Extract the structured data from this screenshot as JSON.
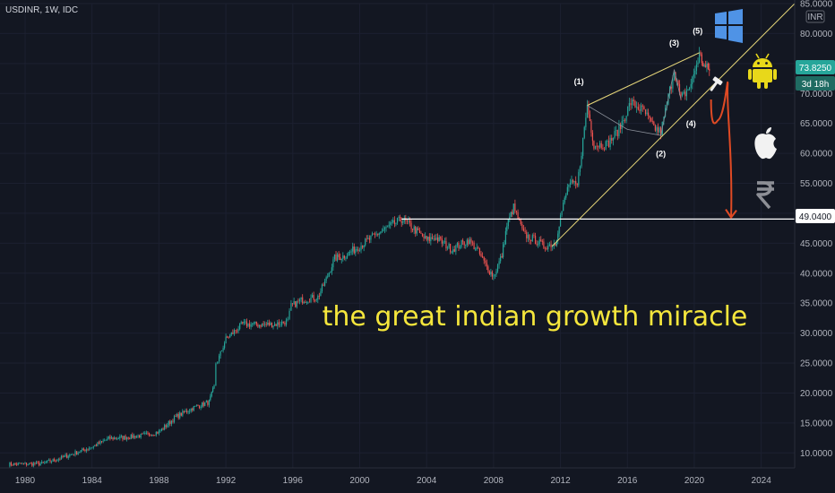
{
  "header": {
    "ticker": "USDINR, 1W, IDC"
  },
  "headline": "the great indian growth miracle",
  "currency_unit": "INR",
  "price_tag": "73.8250",
  "timer_tag": "3d 18h",
  "level_tag": "49.0400",
  "colors": {
    "background": "#131722",
    "up": "#26a69a",
    "down": "#ef5350",
    "trendline": "#e8d87a",
    "wave_line": "#8a8f99",
    "projection": "#e04a24",
    "support_line": "#ffffff",
    "headline": "#f5e63c"
  },
  "icons": [
    "windows-logo-icon",
    "android-logo-icon",
    "apple-logo-icon",
    "rupee-symbol-icon",
    "hammer-icon"
  ],
  "chart_data": {
    "type": "candlestick",
    "title": "USDINR, 1W, IDC",
    "xlim": [
      1978.5,
      2026
    ],
    "ylim": [
      7.5,
      85
    ],
    "x_ticks": [
      {
        "label": "1980",
        "x": 1980
      },
      {
        "label": "1984",
        "x": 1984
      },
      {
        "label": "1988",
        "x": 1988
      },
      {
        "label": "1992",
        "x": 1992
      },
      {
        "label": "1996",
        "x": 1996
      },
      {
        "label": "2000",
        "x": 2000
      },
      {
        "label": "2004",
        "x": 2004
      },
      {
        "label": "2008",
        "x": 2008
      },
      {
        "label": "2012",
        "x": 2012
      },
      {
        "label": "2016",
        "x": 2016
      },
      {
        "label": "2020",
        "x": 2020
      },
      {
        "label": "2024",
        "x": 2024
      }
    ],
    "y_ticks": [
      {
        "label": "10.0000",
        "y": 10
      },
      {
        "label": "15.0000",
        "y": 15
      },
      {
        "label": "20.0000",
        "y": 20
      },
      {
        "label": "25.0000",
        "y": 25
      },
      {
        "label": "30.0000",
        "y": 30
      },
      {
        "label": "35.0000",
        "y": 35
      },
      {
        "label": "40.0000",
        "y": 40
      },
      {
        "label": "45.0000",
        "y": 45
      },
      {
        "label": "50.0000",
        "y": 50
      },
      {
        "label": "55.0000",
        "y": 55
      },
      {
        "label": "60.0000",
        "y": 60
      },
      {
        "label": "65.0000",
        "y": 65
      },
      {
        "label": "70.0000",
        "y": 70
      },
      {
        "label": "75.0000",
        "y": 75
      },
      {
        "label": "80.0000",
        "y": 80
      },
      {
        "label": "85.0000",
        "y": 85
      }
    ],
    "price_path": [
      [
        1979.0,
        8.1
      ],
      [
        1981.0,
        8.2
      ],
      [
        1982.0,
        9.0
      ],
      [
        1983.0,
        10.0
      ],
      [
        1984.0,
        11.0
      ],
      [
        1985.0,
        12.4
      ],
      [
        1986.0,
        12.6
      ],
      [
        1987.0,
        12.9
      ],
      [
        1988.0,
        13.5
      ],
      [
        1989.0,
        16.0
      ],
      [
        1990.0,
        17.5
      ],
      [
        1991.0,
        18.5
      ],
      [
        1991.3,
        21.0
      ],
      [
        1991.4,
        25.0
      ],
      [
        1991.6,
        26.0
      ],
      [
        1992.0,
        29.0
      ],
      [
        1993.0,
        31.5
      ],
      [
        1994.0,
        31.4
      ],
      [
        1995.0,
        31.5
      ],
      [
        1995.7,
        32.0
      ],
      [
        1995.9,
        34.5
      ],
      [
        1996.5,
        35.5
      ],
      [
        1997.5,
        36.0
      ],
      [
        1998.0,
        39.0
      ],
      [
        1998.5,
        42.5
      ],
      [
        1999.0,
        42.8
      ],
      [
        2000.0,
        44.5
      ],
      [
        2001.0,
        46.5
      ],
      [
        2002.5,
        49.0
      ],
      [
        2003.0,
        48.0
      ],
      [
        2004.0,
        45.5
      ],
      [
        2004.5,
        46.0
      ],
      [
        2005.5,
        44.0
      ],
      [
        2006.5,
        45.5
      ],
      [
        2007.0,
        44.0
      ],
      [
        2007.6,
        41.0
      ],
      [
        2008.0,
        39.5
      ],
      [
        2008.5,
        43.0
      ],
      [
        2008.8,
        48.0
      ],
      [
        2009.2,
        51.0
      ],
      [
        2009.8,
        46.5
      ],
      [
        2010.5,
        45.5
      ],
      [
        2011.0,
        44.5
      ],
      [
        2011.7,
        45.0
      ],
      [
        2012.0,
        49.5
      ],
      [
        2012.5,
        55.0
      ],
      [
        2013.0,
        54.5
      ],
      [
        2013.6,
        68.0
      ],
      [
        2014.0,
        61.5
      ],
      [
        2014.8,
        61.5
      ],
      [
        2015.5,
        64.0
      ],
      [
        2016.2,
        68.5
      ],
      [
        2017.0,
        67.0
      ],
      [
        2017.5,
        64.5
      ],
      [
        2018.0,
        63.5
      ],
      [
        2018.8,
        74.0
      ],
      [
        2019.2,
        69.0
      ],
      [
        2019.8,
        71.5
      ],
      [
        2020.3,
        76.5
      ],
      [
        2020.6,
        74.5
      ],
      [
        2020.9,
        73.8
      ]
    ],
    "support_level": 49.04,
    "last_price": 73.825,
    "trendline_lower": [
      [
        2011.5,
        44.5
      ],
      [
        2026.0,
        85.0
      ]
    ],
    "trendline_upper": [
      [
        2013.6,
        68.0
      ],
      [
        2020.3,
        76.8
      ]
    ],
    "wave_connectors": [
      [
        2013.6,
        68.0
      ],
      [
        2016.0,
        64.0
      ],
      [
        2018.0,
        63.0
      ],
      [
        2018.8,
        74.0
      ],
      [
        2019.2,
        69.0
      ]
    ],
    "wave_labels": [
      {
        "label": "(1)",
        "x": 2013.1,
        "y": 71.5
      },
      {
        "label": "(2)",
        "x": 2018.0,
        "y": 59.5
      },
      {
        "label": "(3)",
        "x": 2018.8,
        "y": 78.0
      },
      {
        "label": "(4)",
        "x": 2019.8,
        "y": 64.5
      },
      {
        "label": "(5)",
        "x": 2020.2,
        "y": 80.0
      }
    ],
    "projection_path": [
      [
        2021.0,
        69.0
      ],
      [
        2021.4,
        65.5
      ],
      [
        2022.0,
        71.5
      ],
      [
        2022.3,
        60.0
      ],
      [
        2022.2,
        49.3
      ]
    ]
  }
}
